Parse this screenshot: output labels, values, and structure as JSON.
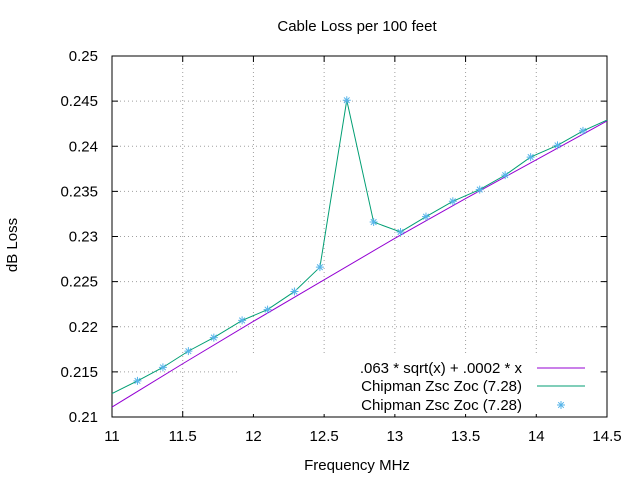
{
  "chart_data": {
    "type": "line",
    "title": "Cable Loss per 100 feet",
    "xlabel": "Frequency MHz",
    "ylabel": "dB Loss",
    "xlim": [
      11,
      14.5
    ],
    "ylim": [
      0.21,
      0.25
    ],
    "xticks": [
      "11",
      "11.5",
      "12",
      "12.5",
      "13",
      "13.5",
      "14",
      "14.5"
    ],
    "yticks": [
      "0.21",
      "0.215",
      "0.22",
      "0.225",
      "0.23",
      "0.235",
      "0.24",
      "0.245",
      "0.25"
    ],
    "grid": true,
    "legend_position": "bottom-right",
    "series": [
      {
        "name": ".063 * sqrt(x) + .0002 * x",
        "style": "line",
        "color": "#9400d3",
        "x": [
          11,
          11.5,
          12,
          12.5,
          13,
          13.5,
          14,
          14.5
        ],
        "y": [
          0.2111,
          0.2159,
          0.2206,
          0.2252,
          0.2298,
          0.2342,
          0.2385,
          0.2428
        ]
      },
      {
        "name": "Chipman Zsc Zoc (7.28)",
        "style": "line",
        "color": "#009e73",
        "x": [
          11,
          11.18,
          11.36,
          11.54,
          11.72,
          11.92,
          12.1,
          12.29,
          12.47,
          12.66,
          12.85,
          13.04,
          13.22,
          13.41,
          13.6,
          13.78,
          13.96,
          14.15,
          14.33,
          14.5
        ],
        "y": [
          0.2126,
          0.214,
          0.2155,
          0.2173,
          0.2188,
          0.2207,
          0.2219,
          0.2239,
          0.2266,
          0.2451,
          0.2316,
          0.2305,
          0.2322,
          0.2339,
          0.2352,
          0.2368,
          0.2388,
          0.2401,
          0.2417,
          0.2429
        ]
      },
      {
        "name": "Chipman Zsc Zoc (7.28)",
        "style": "points",
        "color": "#56b4e9",
        "x": [
          11.18,
          11.36,
          11.54,
          11.72,
          11.92,
          12.1,
          12.29,
          12.47,
          12.66,
          12.85,
          13.04,
          13.22,
          13.41,
          13.6,
          13.78,
          13.96,
          14.15,
          14.33
        ],
        "y": [
          0.214,
          0.2155,
          0.2173,
          0.2188,
          0.2207,
          0.2219,
          0.2239,
          0.2266,
          0.2451,
          0.2316,
          0.2305,
          0.2322,
          0.2339,
          0.2352,
          0.2368,
          0.2388,
          0.2401,
          0.2417
        ]
      }
    ]
  }
}
